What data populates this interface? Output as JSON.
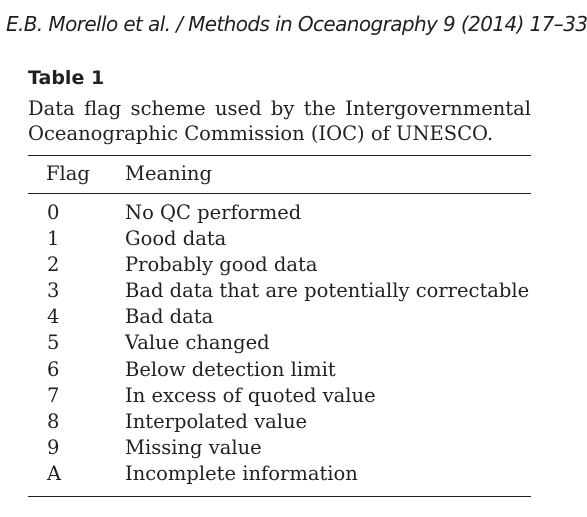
{
  "running_header": "E.B. Morello et al. / Methods in Oceanography 9 (2014) 17–33",
  "table": {
    "label": "Table 1",
    "caption": "Data flag scheme used by the Intergovernmental Oceanographic Commission (IOC) of UNESCO.",
    "columns": [
      "Flag",
      "Meaning"
    ],
    "rows": [
      {
        "flag": "0",
        "meaning": "No QC performed"
      },
      {
        "flag": "1",
        "meaning": "Good data"
      },
      {
        "flag": "2",
        "meaning": "Probably good data"
      },
      {
        "flag": "3",
        "meaning": "Bad data that are potentially correctable"
      },
      {
        "flag": "4",
        "meaning": "Bad data"
      },
      {
        "flag": "5",
        "meaning": "Value changed"
      },
      {
        "flag": "6",
        "meaning": "Below detection limit"
      },
      {
        "flag": "7",
        "meaning": "In excess of quoted value"
      },
      {
        "flag": "8",
        "meaning": "Interpolated value"
      },
      {
        "flag": "9",
        "meaning": "Missing value"
      },
      {
        "flag": "A",
        "meaning": "Incomplete information"
      }
    ]
  }
}
